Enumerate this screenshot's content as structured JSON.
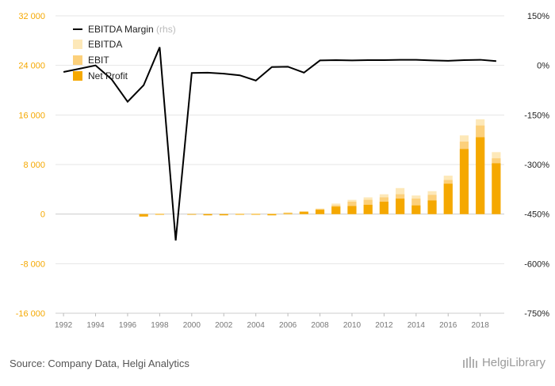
{
  "chart_data": {
    "type": "bar",
    "x": [
      "1992",
      "1993",
      "1994",
      "1995",
      "1996",
      "1997",
      "1998",
      "1999",
      "2000",
      "2001",
      "2002",
      "2003",
      "2004",
      "2005",
      "2006",
      "2007",
      "2008",
      "2009",
      "2010",
      "2011",
      "2012",
      "2013",
      "2014",
      "2015",
      "2016",
      "2017",
      "2018",
      "2019"
    ],
    "x_tick_labels": [
      "1992",
      "1994",
      "1996",
      "1998",
      "2000",
      "2002",
      "2004",
      "2006",
      "2008",
      "2010",
      "2012",
      "2014",
      "2016",
      "2018"
    ],
    "left_ylim": [
      -16000,
      32000
    ],
    "left_ticks": [
      "-16 000",
      "-8 000",
      "0",
      "8 000",
      "16 000",
      "24 000",
      "32 000"
    ],
    "right_ylim": [
      -7.5,
      1.5
    ],
    "right_ticks": [
      "-750%",
      "-600%",
      "-450%",
      "-300%",
      "-150%",
      "0%",
      "150%"
    ],
    "grid": true,
    "legend_position": "top-left",
    "series": [
      {
        "name": "EBITDA Margin",
        "label_suffix": "(rhs)",
        "kind": "line",
        "axis": "right",
        "color": "#000000",
        "values": [
          -0.2,
          -0.1,
          0.0,
          -0.42,
          -1.1,
          -0.6,
          0.55,
          -5.3,
          -0.23,
          -0.22,
          -0.25,
          -0.3,
          -0.46,
          -0.05,
          -0.04,
          -0.22,
          0.15,
          0.16,
          0.15,
          0.16,
          0.16,
          0.17,
          0.17,
          0.15,
          0.14,
          0.16,
          0.17,
          0.13
        ]
      },
      {
        "name": "EBITDA",
        "kind": "bar",
        "axis": "left",
        "color": "#fde8b8",
        "values": [
          null,
          null,
          null,
          null,
          null,
          0,
          100,
          null,
          0,
          -50,
          0,
          100,
          100,
          100,
          300,
          400,
          900,
          1700,
          2300,
          2700,
          3200,
          4200,
          3000,
          3700,
          6200,
          12700,
          15300,
          10000
        ]
      },
      {
        "name": "EBIT",
        "kind": "bar",
        "axis": "left",
        "color": "#fcd07b",
        "values": [
          null,
          null,
          null,
          null,
          null,
          -300,
          0,
          null,
          0,
          -100,
          -100,
          0,
          0,
          -100,
          200,
          200,
          800,
          1400,
          2000,
          2300,
          2700,
          3200,
          2500,
          3100,
          5500,
          11700,
          14300,
          9000
        ]
      },
      {
        "name": "Net Profit",
        "kind": "bar",
        "axis": "left",
        "color": "#f5a800",
        "values": [
          null,
          null,
          null,
          null,
          null,
          -400,
          0,
          null,
          0,
          -200,
          -200,
          0,
          -100,
          -200,
          100,
          400,
          700,
          1200,
          1300,
          1500,
          2000,
          2500,
          1400,
          2200,
          4900,
          10500,
          12400,
          8200
        ]
      }
    ]
  },
  "footer": {
    "source": "Source: Company Data, Helgi Analytics",
    "logo_text": "HelgiLibrary"
  }
}
